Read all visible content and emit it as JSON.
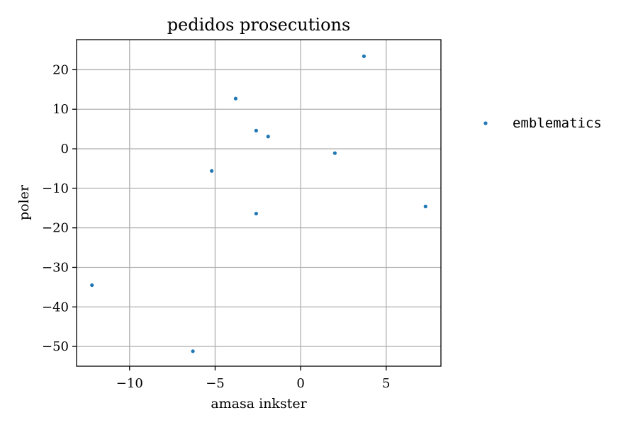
{
  "chart_data": {
    "type": "scatter",
    "title": "pedidos prosecutions",
    "xlabel": "amasa inkster",
    "ylabel": "poler",
    "xlim": [
      -13.1,
      8.2
    ],
    "ylim": [
      -55,
      27.6
    ],
    "xticks": [
      -10,
      -5,
      0,
      5
    ],
    "xtick_labels": [
      "−10",
      "−5",
      "0",
      "5"
    ],
    "yticks": [
      20,
      10,
      0,
      -10,
      -20,
      -30,
      -40,
      -50
    ],
    "ytick_labels": [
      "20",
      "10",
      "0",
      "−10",
      "−20",
      "−30",
      "−40",
      "−50"
    ],
    "grid": true,
    "legend_position": "outside-right",
    "series": [
      {
        "name": "emblematics",
        "color": "#1f77b4",
        "points": [
          {
            "x": 3.7,
            "y": 23.4
          },
          {
            "x": -3.8,
            "y": 12.7
          },
          {
            "x": -2.6,
            "y": 4.6
          },
          {
            "x": -1.9,
            "y": 3.1
          },
          {
            "x": 2.0,
            "y": -1.1
          },
          {
            "x": -5.2,
            "y": -5.6
          },
          {
            "x": -2.6,
            "y": -16.4
          },
          {
            "x": 7.3,
            "y": -14.6
          },
          {
            "x": -12.2,
            "y": -34.5
          },
          {
            "x": -6.3,
            "y": -51.2
          }
        ]
      }
    ]
  }
}
